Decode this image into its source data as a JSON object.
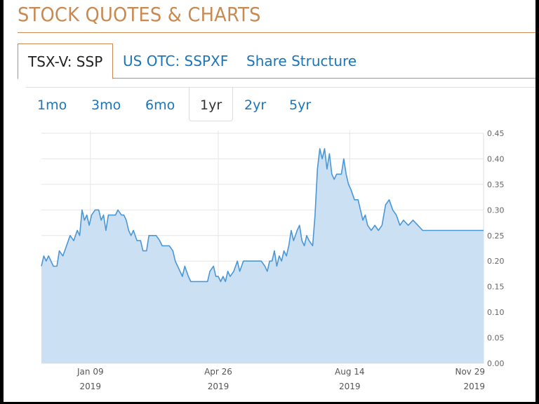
{
  "header": {
    "title": "STOCK QUOTES & CHARTS"
  },
  "tabs": [
    {
      "label": "TSX-V: SSP",
      "active": true
    },
    {
      "label": "US OTC: SSPXF",
      "active": false
    },
    {
      "label": "Share Structure",
      "active": false
    }
  ],
  "ranges": [
    {
      "label": "1mo",
      "active": false
    },
    {
      "label": "3mo",
      "active": false
    },
    {
      "label": "6mo",
      "active": false
    },
    {
      "label": "1yr",
      "active": true
    },
    {
      "label": "2yr",
      "active": false
    },
    {
      "label": "5yr",
      "active": false
    }
  ],
  "colors": {
    "accent": "#c98a52",
    "link": "#1a75bb",
    "line": "#4a97d6",
    "fill": "#c9def3"
  },
  "chart_data": {
    "type": "area",
    "title": "",
    "xlabel": "",
    "ylabel": "",
    "ylim": [
      0,
      0.45
    ],
    "grid": true,
    "y_ticks": [
      "0.45",
      "0.40",
      "0.35",
      "0.30",
      "0.25",
      "0.20",
      "0.15",
      "0.10",
      "0.05",
      "0.00"
    ],
    "x_ticks": [
      {
        "label": "Jan 09",
        "year": "2019",
        "date": "2019-01-09"
      },
      {
        "label": "Apr 26",
        "year": "2019",
        "date": "2019-04-26"
      },
      {
        "label": "Aug 14",
        "year": "2019",
        "date": "2019-08-14"
      },
      {
        "label": "Nov 29",
        "year": "2019",
        "date": "2019-11-29"
      }
    ],
    "x_range": [
      "2018-11-29",
      "2019-12-04"
    ],
    "series": [
      {
        "points": [
          [
            "2018-11-29",
            0.19
          ],
          [
            "2018-12-01",
            0.21
          ],
          [
            "2018-12-03",
            0.2
          ],
          [
            "2018-12-05",
            0.21
          ],
          [
            "2018-12-07",
            0.2
          ],
          [
            "2018-12-09",
            0.19
          ],
          [
            "2018-12-12",
            0.19
          ],
          [
            "2018-12-14",
            0.22
          ],
          [
            "2018-12-17",
            0.21
          ],
          [
            "2018-12-20",
            0.23
          ],
          [
            "2018-12-23",
            0.25
          ],
          [
            "2018-12-26",
            0.24
          ],
          [
            "2018-12-29",
            0.26
          ],
          [
            "2018-12-31",
            0.25
          ],
          [
            "2019-01-02",
            0.3
          ],
          [
            "2019-01-04",
            0.28
          ],
          [
            "2019-01-06",
            0.29
          ],
          [
            "2019-01-08",
            0.27
          ],
          [
            "2019-01-10",
            0.29
          ],
          [
            "2019-01-13",
            0.3
          ],
          [
            "2019-01-16",
            0.3
          ],
          [
            "2019-01-18",
            0.28
          ],
          [
            "2019-01-20",
            0.29
          ],
          [
            "2019-01-22",
            0.26
          ],
          [
            "2019-01-24",
            0.29
          ],
          [
            "2019-01-27",
            0.29
          ],
          [
            "2019-01-30",
            0.29
          ],
          [
            "2019-02-01",
            0.3
          ],
          [
            "2019-02-04",
            0.29
          ],
          [
            "2019-02-06",
            0.29
          ],
          [
            "2019-02-08",
            0.28
          ],
          [
            "2019-02-10",
            0.26
          ],
          [
            "2019-02-12",
            0.25
          ],
          [
            "2019-02-14",
            0.26
          ],
          [
            "2019-02-17",
            0.24
          ],
          [
            "2019-02-20",
            0.24
          ],
          [
            "2019-02-22",
            0.22
          ],
          [
            "2019-02-25",
            0.22
          ],
          [
            "2019-02-27",
            0.25
          ],
          [
            "2019-03-02",
            0.25
          ],
          [
            "2019-03-05",
            0.25
          ],
          [
            "2019-03-08",
            0.24
          ],
          [
            "2019-03-10",
            0.23
          ],
          [
            "2019-03-13",
            0.23
          ],
          [
            "2019-03-16",
            0.23
          ],
          [
            "2019-03-19",
            0.22
          ],
          [
            "2019-03-21",
            0.2
          ],
          [
            "2019-03-23",
            0.19
          ],
          [
            "2019-03-25",
            0.18
          ],
          [
            "2019-03-27",
            0.17
          ],
          [
            "2019-03-29",
            0.19
          ],
          [
            "2019-04-01",
            0.17
          ],
          [
            "2019-04-03",
            0.16
          ],
          [
            "2019-04-06",
            0.16
          ],
          [
            "2019-04-10",
            0.16
          ],
          [
            "2019-04-14",
            0.16
          ],
          [
            "2019-04-17",
            0.16
          ],
          [
            "2019-04-19",
            0.18
          ],
          [
            "2019-04-22",
            0.19
          ],
          [
            "2019-04-24",
            0.17
          ],
          [
            "2019-04-26",
            0.17
          ],
          [
            "2019-04-28",
            0.16
          ],
          [
            "2019-04-30",
            0.17
          ],
          [
            "2019-05-02",
            0.16
          ],
          [
            "2019-05-04",
            0.18
          ],
          [
            "2019-05-06",
            0.17
          ],
          [
            "2019-05-09",
            0.18
          ],
          [
            "2019-05-12",
            0.2
          ],
          [
            "2019-05-14",
            0.18
          ],
          [
            "2019-05-17",
            0.2
          ],
          [
            "2019-05-20",
            0.2
          ],
          [
            "2019-05-24",
            0.2
          ],
          [
            "2019-05-28",
            0.2
          ],
          [
            "2019-06-01",
            0.2
          ],
          [
            "2019-06-04",
            0.19
          ],
          [
            "2019-06-06",
            0.18
          ],
          [
            "2019-06-08",
            0.2
          ],
          [
            "2019-06-10",
            0.2
          ],
          [
            "2019-06-12",
            0.22
          ],
          [
            "2019-06-14",
            0.19
          ],
          [
            "2019-06-16",
            0.21
          ],
          [
            "2019-06-18",
            0.2
          ],
          [
            "2019-06-20",
            0.22
          ],
          [
            "2019-06-22",
            0.21
          ],
          [
            "2019-06-24",
            0.23
          ],
          [
            "2019-06-26",
            0.26
          ],
          [
            "2019-06-28",
            0.24
          ],
          [
            "2019-07-01",
            0.26
          ],
          [
            "2019-07-03",
            0.27
          ],
          [
            "2019-07-05",
            0.24
          ],
          [
            "2019-07-07",
            0.23
          ],
          [
            "2019-07-09",
            0.25
          ],
          [
            "2019-07-11",
            0.24
          ],
          [
            "2019-07-14",
            0.23
          ],
          [
            "2019-07-16",
            0.29
          ],
          [
            "2019-07-18",
            0.38
          ],
          [
            "2019-07-20",
            0.42
          ],
          [
            "2019-07-22",
            0.4
          ],
          [
            "2019-07-24",
            0.42
          ],
          [
            "2019-07-26",
            0.38
          ],
          [
            "2019-07-28",
            0.41
          ],
          [
            "2019-07-30",
            0.37
          ],
          [
            "2019-08-01",
            0.36
          ],
          [
            "2019-08-03",
            0.37
          ],
          [
            "2019-08-05",
            0.37
          ],
          [
            "2019-08-07",
            0.37
          ],
          [
            "2019-08-09",
            0.4
          ],
          [
            "2019-08-11",
            0.37
          ],
          [
            "2019-08-13",
            0.35
          ],
          [
            "2019-08-15",
            0.34
          ],
          [
            "2019-08-18",
            0.32
          ],
          [
            "2019-08-21",
            0.32
          ],
          [
            "2019-08-23",
            0.3
          ],
          [
            "2019-08-25",
            0.28
          ],
          [
            "2019-08-27",
            0.29
          ],
          [
            "2019-08-29",
            0.27
          ],
          [
            "2019-09-01",
            0.26
          ],
          [
            "2019-09-04",
            0.27
          ],
          [
            "2019-09-07",
            0.26
          ],
          [
            "2019-09-10",
            0.27
          ],
          [
            "2019-09-13",
            0.31
          ],
          [
            "2019-09-16",
            0.32
          ],
          [
            "2019-09-19",
            0.3
          ],
          [
            "2019-09-22",
            0.29
          ],
          [
            "2019-09-25",
            0.27
          ],
          [
            "2019-09-28",
            0.28
          ],
          [
            "2019-10-02",
            0.27
          ],
          [
            "2019-10-06",
            0.28
          ],
          [
            "2019-10-10",
            0.27
          ],
          [
            "2019-10-14",
            0.26
          ],
          [
            "2019-10-18",
            0.26
          ],
          [
            "2019-10-22",
            0.26
          ]
        ]
      }
    ]
  }
}
